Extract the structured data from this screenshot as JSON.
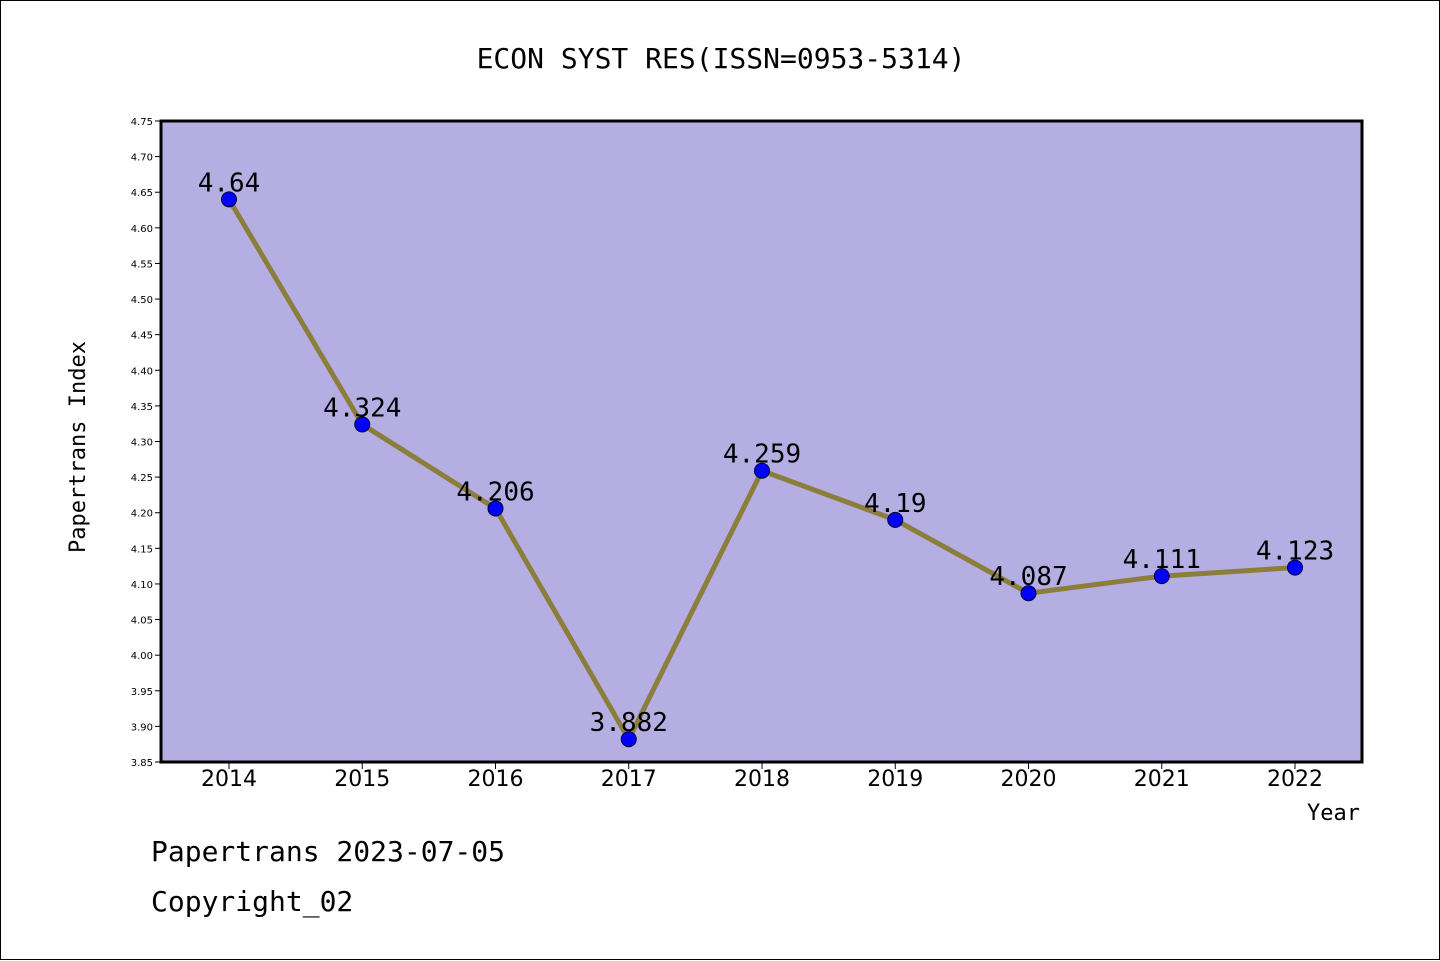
{
  "chart_data": {
    "type": "line",
    "title": "ECON SYST RES(ISSN=0953-5314)",
    "xlabel": "Year",
    "ylabel": "Papertrans Index",
    "categories": [
      "2014",
      "2015",
      "2016",
      "2017",
      "2018",
      "2019",
      "2020",
      "2021",
      "2022"
    ],
    "values": [
      4.64,
      4.324,
      4.206,
      3.882,
      4.259,
      4.19,
      4.087,
      4.111,
      4.123
    ],
    "data_labels": [
      "4.64",
      "4.324",
      "4.206",
      "3.882",
      "4.259",
      "4.19",
      "4.087",
      "4.111",
      "4.123"
    ],
    "ylim": [
      3.85,
      4.75
    ],
    "yticks": [
      "3.85",
      "3.90",
      "3.95",
      "4.00",
      "4.05",
      "4.10",
      "4.15",
      "4.20",
      "4.25",
      "4.30",
      "4.35",
      "4.40",
      "4.45",
      "4.50",
      "4.55",
      "4.60",
      "4.65",
      "4.70",
      "4.75"
    ],
    "grid": false,
    "colors": {
      "plot_background": "#b5aee2",
      "line": "#8b7d3a",
      "marker": "#0000ff"
    }
  },
  "footer": {
    "date_line": "Papertrans 2023-07-05",
    "copyright": "Copyright_02"
  }
}
